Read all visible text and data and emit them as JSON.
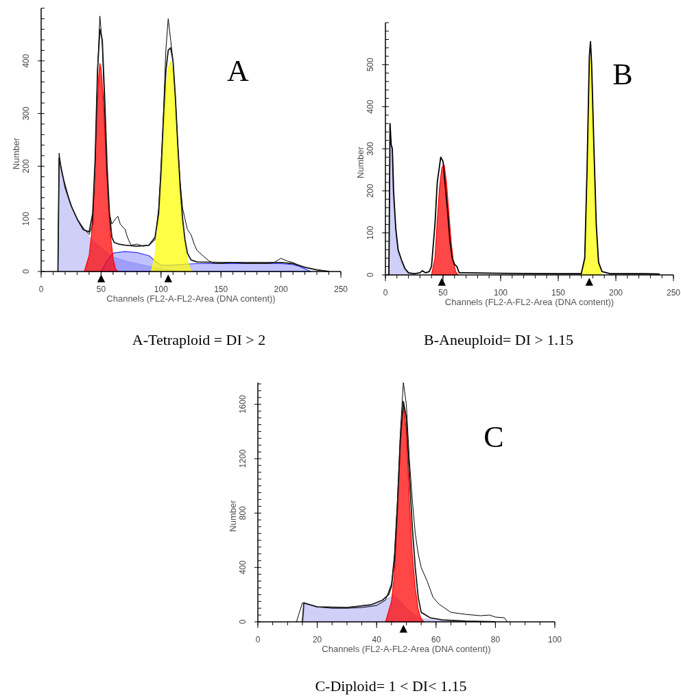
{
  "chart_data": [
    {
      "type": "area",
      "title": "A",
      "xlabel": "Channels (FL2-A-FL2-Area (DNA content))",
      "ylabel": "Number",
      "xlim": [
        0,
        250
      ],
      "xticks": [
        0,
        50,
        100,
        150,
        200,
        250
      ],
      "ylim": [
        0,
        500
      ],
      "yticks": [
        0,
        100,
        200,
        300,
        400
      ],
      "series": [
        {
          "color": "#bcbcf5",
          "x": [
            14,
            15,
            20,
            25,
            30,
            35,
            40,
            45,
            50,
            55,
            60,
            70,
            80,
            90,
            100,
            110,
            120
          ],
          "values": [
            0,
            220,
            159,
            124,
            100,
            80,
            65,
            55,
            45,
            35,
            28,
            20,
            15,
            10,
            5,
            2,
            0
          ]
        },
        {
          "color": "#3333ff",
          "x": [
            50,
            55,
            60,
            70,
            80,
            90,
            95,
            100,
            110,
            120,
            130,
            150,
            170,
            190,
            200,
            210,
            215,
            220,
            225
          ],
          "values": [
            0,
            20,
            35,
            38,
            36,
            30,
            20,
            12,
            12,
            14,
            15,
            15,
            15,
            15,
            15,
            13,
            10,
            5,
            0
          ]
        },
        {
          "color": "#ff0000",
          "x": [
            36,
            40,
            42,
            44,
            46,
            48,
            49,
            50,
            52,
            54,
            56,
            58,
            60,
            62,
            64
          ],
          "values": [
            0,
            30,
            70,
            150,
            270,
            370,
            395,
            385,
            320,
            220,
            130,
            65,
            25,
            5,
            0
          ]
        },
        {
          "color": "#ffff00",
          "x": [
            92,
            95,
            98,
            100,
            102,
            104,
            106,
            108,
            110,
            112,
            114,
            116,
            118,
            120,
            122,
            124,
            126
          ],
          "values": [
            0,
            30,
            100,
            180,
            270,
            340,
            385,
            398,
            380,
            320,
            240,
            160,
            95,
            50,
            20,
            5,
            0
          ]
        },
        {
          "type": "line",
          "color": "#000000",
          "x": [
            14,
            15,
            17,
            20,
            23,
            26,
            30,
            33,
            36,
            40,
            43,
            45,
            47,
            49,
            51,
            53,
            55,
            57,
            59,
            62,
            64,
            66,
            70,
            72,
            75,
            80,
            85,
            90,
            95,
            98,
            100,
            102,
            104,
            106,
            108,
            110,
            112,
            114,
            116,
            118,
            120,
            122,
            125,
            128,
            130,
            135,
            140,
            145,
            150,
            160,
            170,
            180,
            190,
            195,
            200,
            205,
            210,
            215,
            220,
            225,
            230,
            240
          ],
          "values": [
            0,
            225,
            190,
            165,
            140,
            120,
            100,
            90,
            80,
            70,
            90,
            200,
            380,
            485,
            430,
            300,
            180,
            110,
            90,
            100,
            105,
            90,
            80,
            65,
            50,
            52,
            48,
            50,
            60,
            120,
            200,
            300,
            420,
            480,
            440,
            400,
            330,
            240,
            170,
            120,
            100,
            80,
            70,
            50,
            40,
            30,
            20,
            15,
            15,
            17,
            15,
            15,
            15,
            18,
            25,
            20,
            17,
            12,
            8,
            5,
            3,
            0
          ]
        },
        {
          "type": "line",
          "color": "#1a1a1a",
          "x": [
            14,
            15,
            20,
            25,
            30,
            35,
            40,
            43,
            45,
            47,
            49,
            51,
            53,
            55,
            57,
            59,
            61,
            65,
            70,
            80,
            90,
            95,
            98,
            100,
            102,
            104,
            106,
            108,
            110,
            112,
            114,
            116,
            118,
            120,
            122,
            125,
            130,
            150,
            200,
            210,
            220,
            230,
            240
          ],
          "values": [
            0,
            215,
            160,
            125,
            100,
            80,
            75,
            110,
            210,
            380,
            460,
            440,
            330,
            200,
            110,
            65,
            55,
            52,
            50,
            48,
            50,
            65,
            110,
            190,
            290,
            380,
            420,
            425,
            400,
            330,
            240,
            160,
            100,
            60,
            35,
            22,
            18,
            17,
            17,
            15,
            8,
            3,
            0
          ]
        }
      ],
      "annotations": [
        "A-Tetraploid = DI > 2",
        {
          "text": "▲",
          "x": 50,
          "y": 0
        },
        {
          "text": "▲",
          "x": 106,
          "y": 0
        }
      ]
    },
    {
      "type": "area",
      "title": "B",
      "xlabel": "Channels (FL2-A-FL2-Area (DNA content))",
      "ylabel": "Number",
      "xlim": [
        0,
        250
      ],
      "xticks": [
        0,
        50,
        100,
        150,
        200,
        250
      ],
      "ylim": [
        0,
        600
      ],
      "yticks": [
        0,
        100,
        200,
        300,
        400,
        500
      ],
      "series": [
        {
          "color": "#bcbcf5",
          "x": [
            3,
            4,
            5,
            6,
            7,
            8,
            9,
            10,
            12,
            15,
            18,
            22,
            25
          ],
          "values": [
            0,
            300,
            310,
            300,
            250,
            150,
            100,
            70,
            40,
            20,
            8,
            2,
            0
          ]
        },
        {
          "color": "#ff0000",
          "x": [
            40,
            43,
            45,
            47,
            49,
            51,
            53,
            55,
            57,
            59,
            61,
            63
          ],
          "values": [
            0,
            40,
            130,
            210,
            255,
            262,
            220,
            150,
            80,
            30,
            8,
            0
          ]
        },
        {
          "color": "#ffff00",
          "x": [
            170,
            173,
            175,
            177,
            178,
            179,
            181,
            183,
            185,
            187
          ],
          "values": [
            0,
            30,
            200,
            450,
            515,
            470,
            280,
            100,
            25,
            0
          ]
        },
        {
          "type": "line",
          "color": "#000000",
          "x": [
            3,
            4,
            5,
            6,
            7,
            9,
            11,
            14,
            17,
            20,
            25,
            30,
            32,
            35,
            38,
            40,
            43,
            45,
            48,
            50,
            52,
            54,
            56,
            58,
            60,
            62,
            64,
            70,
            100,
            150,
            170,
            173,
            175,
            177,
            178,
            179,
            181,
            183,
            185,
            188,
            195,
            225,
            238
          ],
          "values": [
            0,
            360,
            310,
            300,
            200,
            110,
            60,
            35,
            15,
            5,
            3,
            5,
            10,
            5,
            8,
            20,
            120,
            220,
            280,
            270,
            210,
            150,
            80,
            40,
            25,
            20,
            5,
            5,
            4,
            3,
            3,
            40,
            250,
            520,
            555,
            500,
            300,
            120,
            30,
            8,
            3,
            3,
            2
          ]
        }
      ],
      "annotations": [
        "B-Aneuploid= DI > 1.15",
        {
          "text": "▲",
          "x": 49,
          "y": 0
        },
        {
          "text": "▲",
          "x": 177,
          "y": 0
        }
      ]
    },
    {
      "type": "area",
      "title": "C",
      "xlabel": "Channels (FL2-A-FL2-Area (DNA content))",
      "ylabel": "Number",
      "xlim": [
        0,
        100
      ],
      "xticks": [
        0,
        20,
        40,
        60,
        80,
        100
      ],
      "ylim": [
        0,
        1760
      ],
      "yticks": [
        0,
        400,
        800,
        1200,
        1600
      ],
      "series": [
        {
          "color": "#bcbcf5",
          "x": [
            15,
            16,
            20,
            30,
            38,
            42,
            44,
            46,
            48,
            50,
            52,
            54,
            56,
            60,
            65,
            70
          ],
          "values": [
            0,
            130,
            110,
            105,
            120,
            150,
            175,
            195,
            150,
            100,
            60,
            35,
            22,
            10,
            3,
            0
          ]
        },
        {
          "color": "#ff0000",
          "x": [
            43,
            45,
            46,
            47,
            48,
            49,
            50,
            51,
            52,
            53,
            54,
            55,
            56
          ],
          "values": [
            0,
            150,
            350,
            800,
            1300,
            1610,
            1400,
            900,
            500,
            250,
            90,
            20,
            0
          ]
        },
        {
          "type": "line",
          "color": "#000000",
          "x": [
            13,
            15,
            20,
            25,
            30,
            35,
            40,
            43,
            45,
            46,
            47,
            48,
            49,
            50,
            51,
            52,
            53,
            54,
            55,
            57,
            59,
            61,
            63,
            65,
            70,
            75,
            78,
            80,
            83,
            84
          ],
          "values": [
            0,
            140,
            110,
            100,
            100,
            105,
            120,
            160,
            280,
            500,
            900,
            1400,
            1760,
            1600,
            1200,
            900,
            650,
            500,
            400,
            300,
            180,
            130,
            100,
            70,
            55,
            45,
            50,
            35,
            30,
            0
          ]
        },
        {
          "type": "line",
          "color": "#1a1a1a",
          "x": [
            15,
            15.5,
            20,
            30,
            38,
            42,
            44,
            45,
            46,
            47,
            48,
            49,
            50,
            51,
            52,
            53,
            54,
            55,
            58,
            62,
            70,
            80
          ],
          "values": [
            0,
            140,
            110,
            105,
            125,
            160,
            200,
            260,
            450,
            850,
            1350,
            1620,
            1500,
            1100,
            700,
            400,
            180,
            70,
            30,
            15,
            5,
            0
          ]
        }
      ],
      "annotations": [
        "C-Diploid= 1 < DI< 1.15",
        {
          "text": "▲",
          "x": 49,
          "y": 0
        }
      ]
    }
  ]
}
